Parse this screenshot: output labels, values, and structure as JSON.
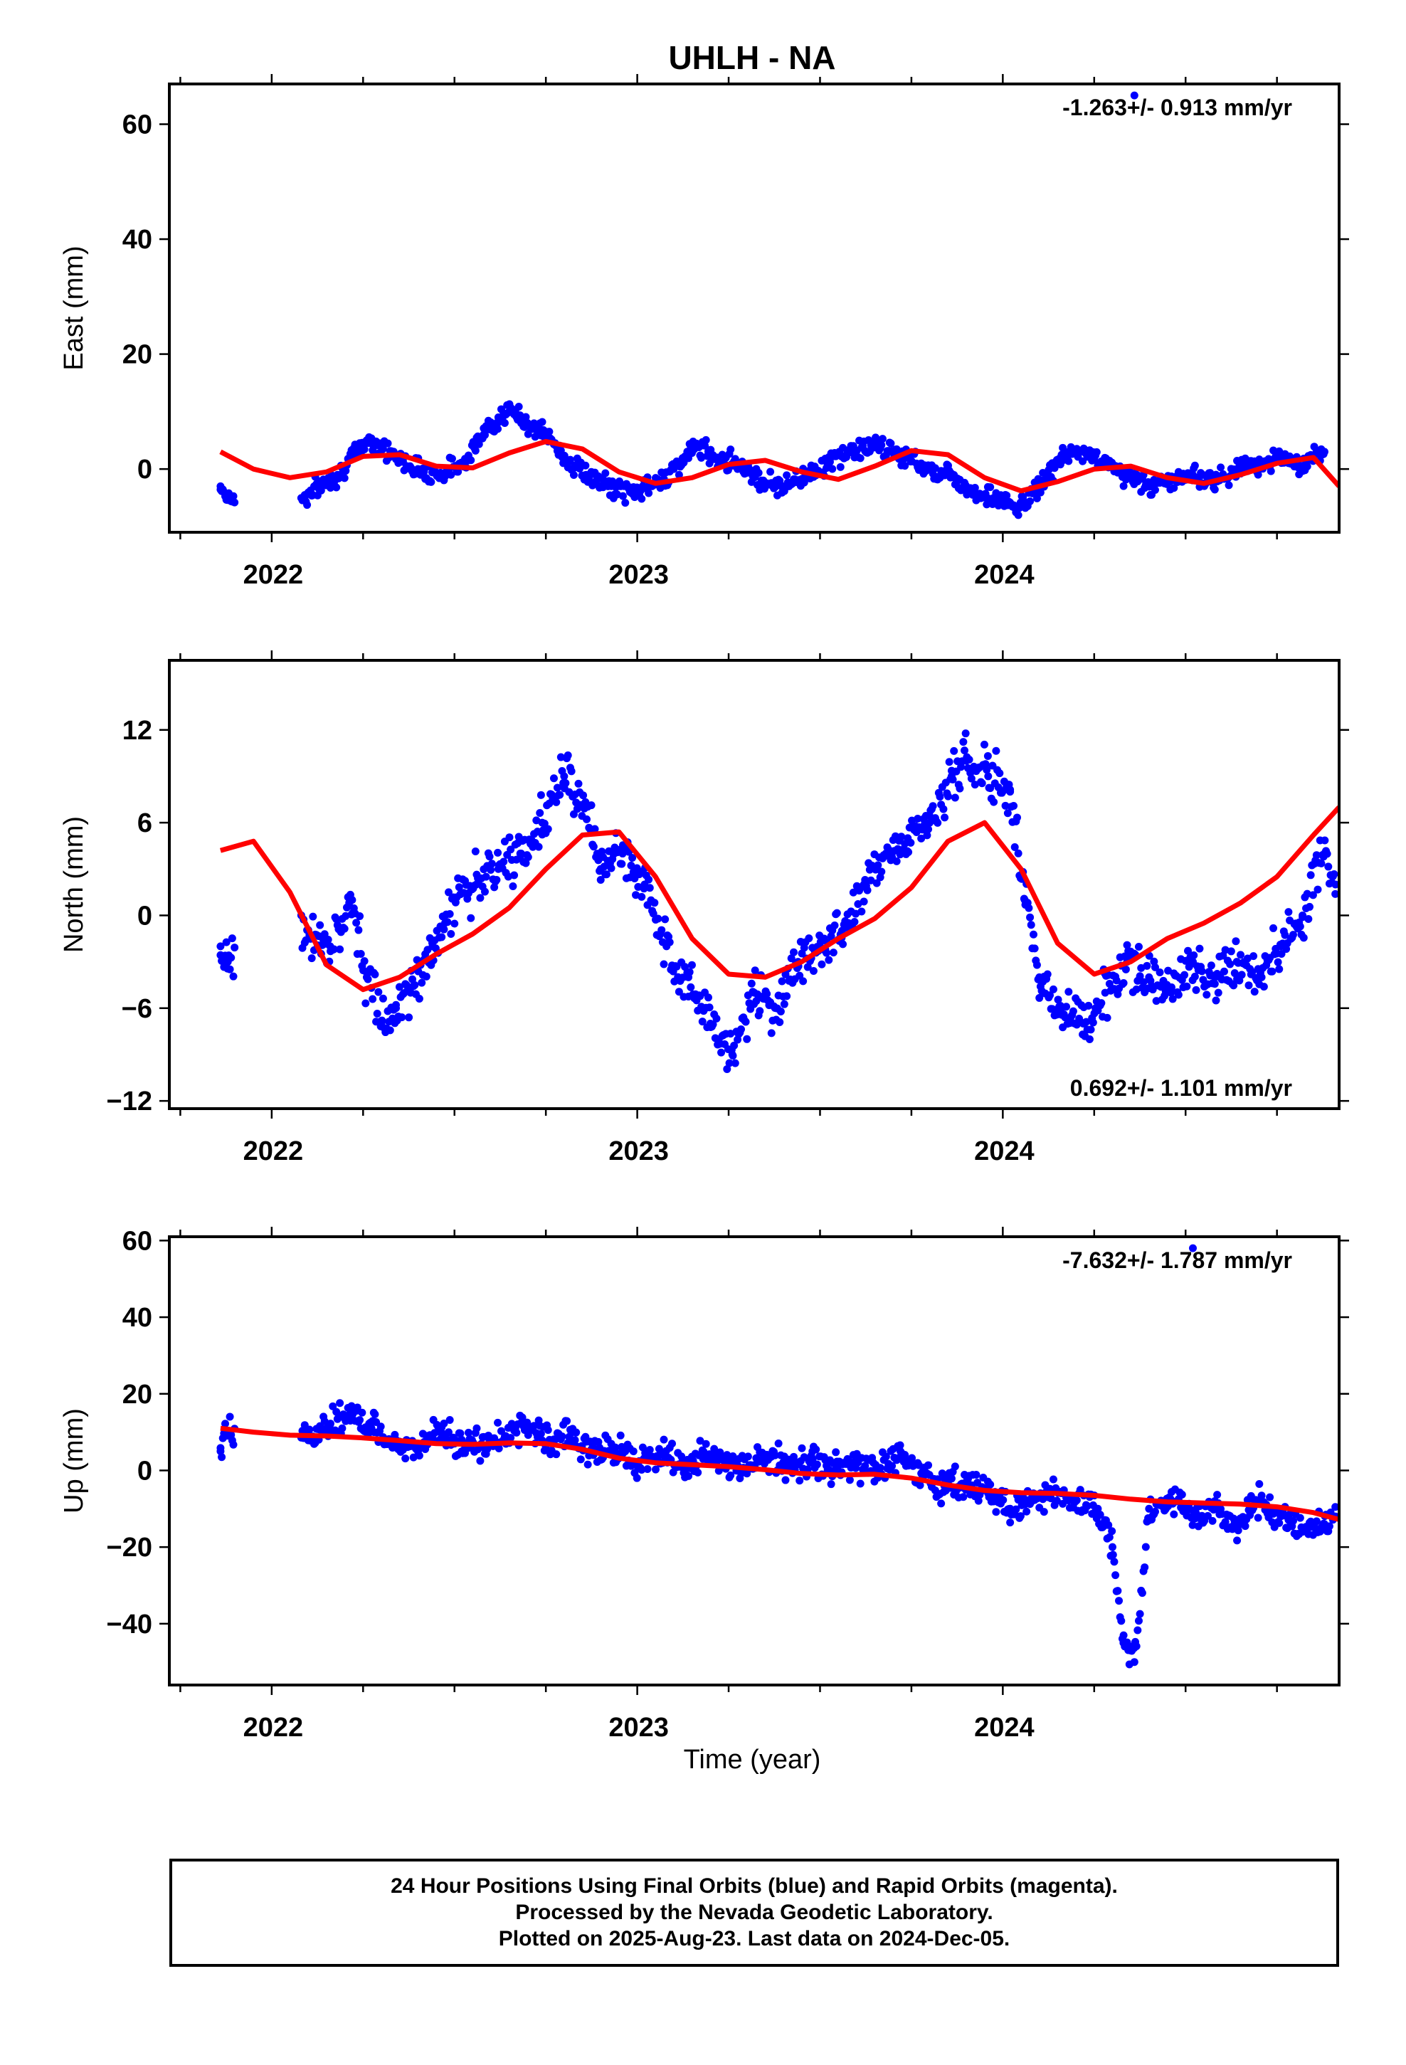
{
  "title": "UHLH - NA",
  "x_axis_label": "Time (year)",
  "footer": {
    "line1": "24 Hour Positions Using Final Orbits (blue) and Rapid Orbits (magenta).",
    "line2": "Processed by the Nevada Geodetic Laboratory.",
    "line3": "Plotted on 2025-Aug-23. Last data on 2024-Dec-05."
  },
  "colors": {
    "points": "#0000ff",
    "fit": "#ff0000",
    "frame": "#000000"
  },
  "chart_data": [
    {
      "type": "scatter",
      "panel": "east",
      "ylabel": "East (mm)",
      "rate_label": "-1.263+/- 0.913 mm/yr",
      "rate_position": "top-right",
      "xlim": [
        2021.72,
        2024.92
      ],
      "ylim": [
        -11,
        67
      ],
      "x_ticks": [
        2022,
        2023,
        2024
      ],
      "y_ticks": [
        0,
        20,
        40,
        60
      ],
      "series": [
        {
          "role": "points",
          "x": [
            2021.86,
            2021.88,
            2022.09,
            2022.13,
            2022.18,
            2022.22,
            2022.26,
            2022.3,
            2022.34,
            2022.4,
            2022.46,
            2022.52,
            2022.58,
            2022.62,
            2022.66,
            2022.7,
            2022.75,
            2022.8,
            2022.86,
            2022.92,
            2022.98,
            2023.04,
            2023.1,
            2023.16,
            2023.22,
            2023.28,
            2023.34,
            2023.4,
            2023.46,
            2023.52,
            2023.58,
            2023.64,
            2023.7,
            2023.74,
            2023.8,
            2023.86,
            2023.92,
            2023.98,
            2024.04,
            2024.1,
            2024.16,
            2024.22,
            2024.28,
            2024.34,
            2024.4,
            2024.46,
            2024.52,
            2024.58,
            2024.64,
            2024.7,
            2024.76,
            2024.82,
            2024.88
          ],
          "y": [
            -3,
            -5,
            -5,
            -3,
            -1,
            2,
            5,
            4,
            2,
            0,
            -1,
            1,
            6,
            9,
            10,
            8,
            6,
            2,
            -1,
            -3,
            -4,
            -3,
            0,
            4,
            2,
            1,
            -2,
            -3,
            -1,
            1,
            3,
            4,
            3,
            2,
            0,
            -1,
            -4,
            -5,
            -7,
            -3,
            2,
            3,
            1,
            -1,
            -3,
            -2,
            -1,
            -2,
            0,
            1,
            2,
            0,
            3
          ]
        },
        {
          "role": "fit",
          "x": [
            2021.86,
            2021.95,
            2022.05,
            2022.15,
            2022.25,
            2022.35,
            2022.45,
            2022.55,
            2022.65,
            2022.75,
            2022.85,
            2022.95,
            2023.05,
            2023.15,
            2023.25,
            2023.35,
            2023.45,
            2023.55,
            2023.65,
            2023.75,
            2023.85,
            2023.95,
            2024.05,
            2024.15,
            2024.25,
            2024.35,
            2024.45,
            2024.55,
            2024.65,
            2024.75,
            2024.85,
            2024.92
          ],
          "y": [
            3.0,
            0.0,
            -1.5,
            -0.5,
            2.2,
            2.5,
            0.5,
            0.2,
            2.8,
            4.8,
            3.5,
            -0.5,
            -2.5,
            -1.5,
            0.8,
            1.5,
            -0.5,
            -1.8,
            0.5,
            3.2,
            2.5,
            -1.5,
            -3.8,
            -2.2,
            0.0,
            0.5,
            -1.5,
            -2.5,
            -1.0,
            1.0,
            2.0,
            -3.0
          ]
        },
        {
          "role": "outlier",
          "x": [
            2024.36
          ],
          "y": [
            65
          ]
        }
      ]
    },
    {
      "type": "scatter",
      "panel": "north",
      "ylabel": "North (mm)",
      "rate_label": "0.692+/- 1.101 mm/yr",
      "rate_position": "bottom-right",
      "xlim": [
        2021.72,
        2024.92
      ],
      "ylim": [
        -12.5,
        16.5
      ],
      "x_ticks": [
        2022,
        2023,
        2024
      ],
      "y_ticks": [
        -12,
        -6,
        0,
        6,
        12
      ],
      "series": [
        {
          "role": "points",
          "x": [
            2021.86,
            2021.88,
            2022.1,
            2022.16,
            2022.22,
            2022.26,
            2022.3,
            2022.34,
            2022.38,
            2022.44,
            2022.5,
            2022.56,
            2022.62,
            2022.68,
            2022.74,
            2022.8,
            2022.86,
            2022.9,
            2022.96,
            2023.02,
            2023.08,
            2023.14,
            2023.2,
            2023.26,
            2023.32,
            2023.38,
            2023.44,
            2023.5,
            2023.56,
            2023.62,
            2023.68,
            2023.74,
            2023.8,
            2023.86,
            2023.9,
            2023.96,
            2024.02,
            2024.06,
            2024.1,
            2024.16,
            2024.22,
            2024.28,
            2024.34,
            2024.4,
            2024.46,
            2024.52,
            2024.58,
            2024.64,
            2024.7,
            2024.76,
            2024.82,
            2024.88,
            2024.91
          ],
          "y": [
            -2,
            -3,
            -1,
            -2,
            1,
            -4,
            -7,
            -6,
            -5,
            -2,
            1,
            2,
            3,
            4,
            6,
            9,
            7,
            3,
            4,
            2,
            -2,
            -4,
            -7,
            -9,
            -5,
            -6,
            -3,
            -2,
            -1,
            2,
            4,
            5,
            6,
            9,
            10,
            9,
            8,
            1,
            -4,
            -6,
            -7,
            -5,
            -3,
            -4,
            -5,
            -3,
            -4,
            -3,
            -4,
            -2,
            0,
            4,
            2
          ]
        },
        {
          "role": "fit",
          "x": [
            2021.86,
            2021.95,
            2022.05,
            2022.15,
            2022.25,
            2022.35,
            2022.45,
            2022.55,
            2022.65,
            2022.75,
            2022.85,
            2022.95,
            2023.05,
            2023.15,
            2023.25,
            2023.35,
            2023.45,
            2023.55,
            2023.65,
            2023.75,
            2023.85,
            2023.95,
            2024.05,
            2024.15,
            2024.25,
            2024.35,
            2024.45,
            2024.55,
            2024.65,
            2024.75,
            2024.85,
            2024.92
          ],
          "y": [
            4.2,
            4.8,
            1.5,
            -3.2,
            -4.8,
            -4.0,
            -2.5,
            -1.2,
            0.5,
            3.0,
            5.2,
            5.4,
            2.5,
            -1.5,
            -3.8,
            -4.0,
            -3.0,
            -1.5,
            -0.2,
            1.8,
            4.8,
            6.0,
            3.0,
            -1.8,
            -3.8,
            -3.0,
            -1.5,
            -0.5,
            0.8,
            2.5,
            5.2,
            7.0
          ]
        }
      ]
    },
    {
      "type": "scatter",
      "panel": "up",
      "ylabel": "Up (mm)",
      "rate_label": "-7.632+/- 1.787 mm/yr",
      "rate_position": "top-right",
      "xlim": [
        2021.72,
        2024.92
      ],
      "ylim": [
        -56,
        61
      ],
      "x_ticks": [
        2022,
        2023,
        2024
      ],
      "y_ticks": [
        -40,
        -20,
        0,
        20,
        40,
        60
      ],
      "series": [
        {
          "role": "points",
          "x": [
            2021.86,
            2021.88,
            2022.1,
            2022.16,
            2022.22,
            2022.28,
            2022.34,
            2022.4,
            2022.46,
            2022.52,
            2022.58,
            2022.64,
            2022.7,
            2022.76,
            2022.82,
            2022.88,
            2022.94,
            2023.0,
            2023.06,
            2023.12,
            2023.18,
            2023.24,
            2023.3,
            2023.36,
            2023.42,
            2023.48,
            2023.54,
            2023.6,
            2023.66,
            2023.72,
            2023.78,
            2023.84,
            2023.9,
            2023.96,
            2024.02,
            2024.08,
            2024.14,
            2024.2,
            2024.26,
            2024.3,
            2024.33,
            2024.36,
            2024.4,
            2024.46,
            2024.52,
            2024.58,
            2024.64,
            2024.7,
            2024.76,
            2024.82,
            2024.88,
            2024.91
          ],
          "y": [
            5,
            10,
            9,
            12,
            15,
            10,
            8,
            5,
            10,
            8,
            6,
            9,
            12,
            8,
            10,
            4,
            6,
            2,
            4,
            1,
            3,
            2,
            0,
            4,
            1,
            3,
            0,
            2,
            -1,
            5,
            -2,
            -4,
            -3,
            -6,
            -10,
            -8,
            -5,
            -8,
            -10,
            -20,
            -45,
            -50,
            -10,
            -8,
            -12,
            -10,
            -15,
            -8,
            -12,
            -16,
            -14,
            -12
          ]
        },
        {
          "role": "fit",
          "x": [
            2021.86,
            2021.95,
            2022.05,
            2022.15,
            2022.25,
            2022.35,
            2022.45,
            2022.55,
            2022.65,
            2022.75,
            2022.85,
            2022.95,
            2023.05,
            2023.15,
            2023.25,
            2023.35,
            2023.45,
            2023.55,
            2023.65,
            2023.75,
            2023.85,
            2023.95,
            2024.05,
            2024.15,
            2024.25,
            2024.35,
            2024.45,
            2024.55,
            2024.65,
            2024.75,
            2024.85,
            2024.92
          ],
          "y": [
            11.0,
            10.0,
            9.2,
            9.0,
            8.5,
            7.8,
            7.0,
            6.8,
            7.2,
            7.0,
            5.5,
            3.2,
            2.0,
            1.5,
            1.0,
            0.2,
            -0.8,
            -1.2,
            -1.0,
            -2.0,
            -3.8,
            -5.2,
            -5.8,
            -6.0,
            -6.5,
            -7.5,
            -8.2,
            -8.5,
            -8.8,
            -9.5,
            -11.0,
            -12.8
          ]
        },
        {
          "role": "outlier",
          "x": [
            2024.52
          ],
          "y": [
            58
          ]
        }
      ]
    }
  ]
}
